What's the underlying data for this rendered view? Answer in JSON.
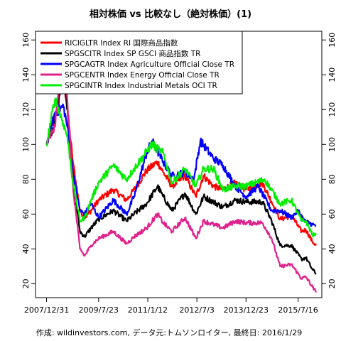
{
  "chart_data": {
    "type": "line",
    "title": "相対株価 vs 比較なし（絶対株価）(1)",
    "caption": "作成: wildinvestors.com, データ元:トムソンロイター, 最終日: 2016/1/29",
    "x_tick_labels": [
      "2007/12/31",
      "2009/7/23",
      "2011/1/12",
      "2012/7/3",
      "2013/12/23",
      "2015/7/16"
    ],
    "x_tick_dates": [
      "2007-12-31",
      "2009-07-23",
      "2011-01-12",
      "2012-07-03",
      "2013-12-23",
      "2015-07-16"
    ],
    "x_range": [
      "2007-09-01",
      "2016-04-01"
    ],
    "y_range": [
      12,
      165
    ],
    "y_ticks": [
      20,
      40,
      60,
      80,
      100,
      120,
      140,
      160
    ],
    "legend_position": "top-left",
    "grid": false,
    "series": [
      {
        "name": "RICIGLTR Index RI 国際商品指数",
        "color": "#ff0000",
        "points": [
          [
            "2007-12-31",
            100
          ],
          [
            "2008-03-31",
            115
          ],
          [
            "2008-07-03",
            140
          ],
          [
            "2008-08-15",
            120
          ],
          [
            "2008-10-15",
            90
          ],
          [
            "2008-12-31",
            62
          ],
          [
            "2009-02-20",
            58
          ],
          [
            "2009-05-01",
            62
          ],
          [
            "2009-07-23",
            68
          ],
          [
            "2009-12-31",
            74
          ],
          [
            "2010-05-25",
            68
          ],
          [
            "2010-08-15",
            74
          ],
          [
            "2010-12-31",
            85
          ],
          [
            "2011-04-29",
            90
          ],
          [
            "2011-06-30",
            84
          ],
          [
            "2011-10-04",
            76
          ],
          [
            "2012-02-24",
            82
          ],
          [
            "2012-06-21",
            70
          ],
          [
            "2012-09-14",
            82
          ],
          [
            "2012-12-31",
            76
          ],
          [
            "2013-04-15",
            74
          ],
          [
            "2013-08-28",
            78
          ],
          [
            "2013-12-23",
            74
          ],
          [
            "2014-06-20",
            78
          ],
          [
            "2014-09-30",
            67
          ],
          [
            "2014-12-31",
            57
          ],
          [
            "2015-05-05",
            59
          ],
          [
            "2015-08-24",
            50
          ],
          [
            "2015-10-09",
            51
          ],
          [
            "2015-12-22",
            44
          ],
          [
            "2016-01-29",
            42
          ]
        ]
      },
      {
        "name": "SPGSCITR Index SP GSCI 商品指数 TR",
        "color": "#000000",
        "points": [
          [
            "2007-12-31",
            100
          ],
          [
            "2008-03-31",
            112
          ],
          [
            "2008-07-03",
            145
          ],
          [
            "2008-08-15",
            120
          ],
          [
            "2008-10-15",
            80
          ],
          [
            "2008-12-31",
            50
          ],
          [
            "2009-02-20",
            47
          ],
          [
            "2009-05-01",
            52
          ],
          [
            "2009-07-23",
            57
          ],
          [
            "2009-12-31",
            62
          ],
          [
            "2010-05-25",
            56
          ],
          [
            "2010-08-15",
            60
          ],
          [
            "2010-12-31",
            66
          ],
          [
            "2011-04-29",
            76
          ],
          [
            "2011-06-30",
            70
          ],
          [
            "2011-10-04",
            62
          ],
          [
            "2012-02-24",
            72
          ],
          [
            "2012-06-21",
            60
          ],
          [
            "2012-09-14",
            70
          ],
          [
            "2012-12-31",
            67
          ],
          [
            "2013-04-15",
            64
          ],
          [
            "2013-08-28",
            68
          ],
          [
            "2013-12-23",
            67
          ],
          [
            "2014-06-20",
            67
          ],
          [
            "2014-09-30",
            56
          ],
          [
            "2014-12-31",
            42
          ],
          [
            "2015-05-05",
            42
          ],
          [
            "2015-08-24",
            34
          ],
          [
            "2015-10-09",
            35
          ],
          [
            "2015-12-22",
            28
          ],
          [
            "2016-01-29",
            26
          ]
        ]
      },
      {
        "name": "SPGCAGTR Index Agriculture Official Close TR",
        "color": "#0000ff",
        "points": [
          [
            "2007-12-31",
            100
          ],
          [
            "2008-03-31",
            118
          ],
          [
            "2008-07-03",
            122
          ],
          [
            "2008-08-15",
            110
          ],
          [
            "2008-10-15",
            85
          ],
          [
            "2008-12-31",
            62
          ],
          [
            "2009-02-20",
            60
          ],
          [
            "2009-05-01",
            66
          ],
          [
            "2009-07-23",
            58
          ],
          [
            "2009-12-31",
            68
          ],
          [
            "2010-05-25",
            60
          ],
          [
            "2010-08-15",
            70
          ],
          [
            "2010-12-31",
            95
          ],
          [
            "2011-02-28",
            102
          ],
          [
            "2011-06-30",
            90
          ],
          [
            "2011-10-04",
            82
          ],
          [
            "2012-02-24",
            84
          ],
          [
            "2012-05-31",
            80
          ],
          [
            "2012-08-10",
            102
          ],
          [
            "2012-12-31",
            92
          ],
          [
            "2013-04-15",
            88
          ],
          [
            "2013-08-28",
            76
          ],
          [
            "2013-12-23",
            70
          ],
          [
            "2014-05-05",
            76
          ],
          [
            "2014-09-30",
            62
          ],
          [
            "2014-12-31",
            62
          ],
          [
            "2015-05-05",
            58
          ],
          [
            "2015-07-16",
            62
          ],
          [
            "2015-09-25",
            56
          ],
          [
            "2015-12-22",
            54
          ],
          [
            "2016-01-29",
            53
          ]
        ]
      },
      {
        "name": "SPGCENTR Index Energy Official Close TR",
        "color": "#e0208c",
        "points": [
          [
            "2007-12-31",
            100
          ],
          [
            "2008-03-31",
            110
          ],
          [
            "2008-07-03",
            158
          ],
          [
            "2008-08-15",
            125
          ],
          [
            "2008-10-15",
            75
          ],
          [
            "2008-12-31",
            40
          ],
          [
            "2009-02-20",
            36
          ],
          [
            "2009-05-01",
            42
          ],
          [
            "2009-07-23",
            46
          ],
          [
            "2009-12-31",
            50
          ],
          [
            "2010-05-25",
            43
          ],
          [
            "2010-08-15",
            47
          ],
          [
            "2010-12-31",
            52
          ],
          [
            "2011-04-29",
            60
          ],
          [
            "2011-06-30",
            55
          ],
          [
            "2011-10-04",
            50
          ],
          [
            "2012-02-24",
            58
          ],
          [
            "2012-06-21",
            46
          ],
          [
            "2012-09-14",
            56
          ],
          [
            "2012-12-31",
            54
          ],
          [
            "2013-04-15",
            52
          ],
          [
            "2013-08-28",
            56
          ],
          [
            "2013-12-23",
            55
          ],
          [
            "2014-06-20",
            55
          ],
          [
            "2014-09-30",
            46
          ],
          [
            "2014-12-31",
            30
          ],
          [
            "2015-05-05",
            31
          ],
          [
            "2015-08-24",
            23
          ],
          [
            "2015-10-09",
            24
          ],
          [
            "2015-12-22",
            18
          ],
          [
            "2016-01-29",
            15
          ]
        ]
      },
      {
        "name": "SPGCINTR Index Industrial Metals OCI TR",
        "color": "#00ee00",
        "points": [
          [
            "2007-12-31",
            100
          ],
          [
            "2008-03-31",
            126
          ],
          [
            "2008-07-03",
            112
          ],
          [
            "2008-08-15",
            104
          ],
          [
            "2008-10-15",
            78
          ],
          [
            "2008-12-31",
            56
          ],
          [
            "2009-02-20",
            58
          ],
          [
            "2009-05-01",
            68
          ],
          [
            "2009-07-23",
            78
          ],
          [
            "2009-12-31",
            88
          ],
          [
            "2010-05-25",
            80
          ],
          [
            "2010-08-15",
            86
          ],
          [
            "2010-12-31",
            96
          ],
          [
            "2011-02-28",
            100
          ],
          [
            "2011-06-30",
            95
          ],
          [
            "2011-10-04",
            78
          ],
          [
            "2012-02-24",
            86
          ],
          [
            "2012-06-21",
            76
          ],
          [
            "2012-09-14",
            86
          ],
          [
            "2012-12-31",
            86
          ],
          [
            "2013-04-15",
            74
          ],
          [
            "2013-08-28",
            76
          ],
          [
            "2013-12-23",
            76
          ],
          [
            "2014-07-15",
            80
          ],
          [
            "2014-12-31",
            66
          ],
          [
            "2015-05-05",
            68
          ],
          [
            "2015-08-24",
            56
          ],
          [
            "2015-10-09",
            56
          ],
          [
            "2015-12-22",
            48
          ],
          [
            "2016-01-29",
            48
          ]
        ]
      }
    ]
  }
}
